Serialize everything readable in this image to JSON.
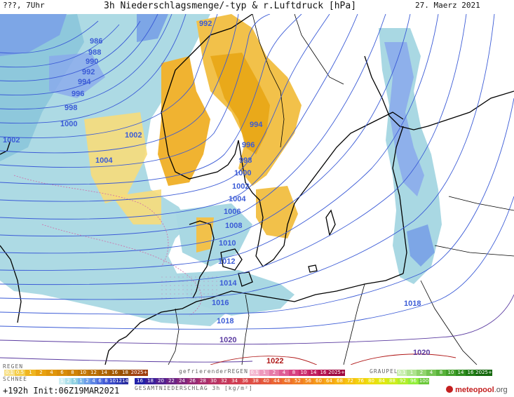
{
  "header": {
    "left": "???, 7Uhr",
    "title": "3h Niederschlagsmenge/-typ & r.Luftdruck [hPa]",
    "date": "27. Maerz 2021"
  },
  "isobars": [
    {
      "label": "986",
      "color": "#3b5bd6"
    },
    {
      "label": "988",
      "color": "#3b5bd6"
    },
    {
      "label": "990",
      "color": "#3b5bd6"
    },
    {
      "label": "992",
      "color": "#3b5bd6"
    },
    {
      "label": "994",
      "color": "#3b5bd6"
    },
    {
      "label": "996",
      "color": "#3b5bd6"
    },
    {
      "label": "998",
      "color": "#3b5bd6"
    },
    {
      "label": "1000",
      "color": "#3b5bd6"
    },
    {
      "label": "1002",
      "color": "#3b5bd6"
    },
    {
      "label": "1002",
      "color": "#3b5bd6"
    },
    {
      "label": "1004",
      "color": "#3b5bd6"
    },
    {
      "label": "994",
      "color": "#3b5bd6"
    },
    {
      "label": "996",
      "color": "#3b5bd6"
    },
    {
      "label": "998",
      "color": "#3b5bd6"
    },
    {
      "label": "1000",
      "color": "#3b5bd6"
    },
    {
      "label": "1002",
      "color": "#3b5bd6"
    },
    {
      "label": "1004",
      "color": "#3b5bd6"
    },
    {
      "label": "1006",
      "color": "#3b5bd6"
    },
    {
      "label": "1008",
      "color": "#3b5bd6"
    },
    {
      "label": "1010",
      "color": "#3b5bd6"
    },
    {
      "label": "1012",
      "color": "#3b5bd6"
    },
    {
      "label": "1014",
      "color": "#3b5bd6"
    },
    {
      "label": "1016",
      "color": "#3b5bd6"
    },
    {
      "label": "1018",
      "color": "#3b5bd6"
    },
    {
      "label": "1018",
      "color": "#3b5bd6"
    },
    {
      "label": "1020",
      "color": "#5a3aa0"
    },
    {
      "label": "1020",
      "color": "#5a3aa0"
    },
    {
      "label": "1022",
      "color": "#b01818"
    },
    {
      "label": "992",
      "color": "#3b5bd6"
    }
  ],
  "legend": {
    "regen_label": "REGEN",
    "schnee_label": "SCHNEE",
    "gefrierender_label": "gefrierenderREGEN",
    "graupel_label": "GRAUPEL",
    "gesamt_label": "GESAMTNIEDERSCHLAG 3h [kg/m²]",
    "rain_scale": [
      "0.1",
      "0.5",
      "1",
      "2",
      "4",
      "6",
      "8",
      "10",
      "12",
      "14",
      "16",
      "18",
      "2025+"
    ],
    "rain_colors": [
      "#f7e08a",
      "#f4cd4a",
      "#efb520",
      "#e8a10f",
      "#e0960a",
      "#d88c08",
      "#cf8206",
      "#c47804",
      "#b96e03",
      "#ae6402",
      "#a35a02",
      "#985002",
      "#a04010"
    ],
    "freezing_scale": [
      "0.1",
      "1",
      "2",
      "4",
      "8",
      "10",
      "14",
      "16",
      "2025+"
    ],
    "freezing_colors": [
      "#f4b8d0",
      "#ee99bd",
      "#e67aa8",
      "#df5c95",
      "#d74080",
      "#cd2d6e",
      "#c21d5f",
      "#b5104f",
      "#a00840"
    ],
    "graupel_scale": [
      "0.1",
      "1",
      "2",
      "4",
      "8",
      "10",
      "14",
      "16",
      "2025+"
    ],
    "graupel_colors": [
      "#c8eeb0",
      "#aee38f",
      "#92d46f",
      "#74c452",
      "#58b23a",
      "#42a02a",
      "#2f8e1e",
      "#207c14",
      "#14680c"
    ],
    "snow_scale": [
      "1",
      "2",
      "5",
      "1",
      "2",
      "4",
      "6",
      "8",
      "10",
      "12",
      "14"
    ],
    "snow_colors": [
      "#cfeef2",
      "#aee0ea",
      "#8ed0e1",
      "#7db7e8",
      "#6d9ee8",
      "#5d85e4",
      "#4f6ddd",
      "#4258d4",
      "#3848c6",
      "#2e3ab6",
      "#2a2ea0"
    ],
    "total_scale": [
      "16",
      "18",
      "20",
      "22",
      "24",
      "26",
      "28",
      "30",
      "32",
      "34",
      "36",
      "38",
      "40",
      "44",
      "48",
      "52",
      "56",
      "60",
      "64",
      "68",
      "72",
      "76",
      "80",
      "84",
      "88",
      "92",
      "96",
      "100"
    ],
    "total_colors": [
      "#2222a8",
      "#3a1f9a",
      "#52208e",
      "#6a2384",
      "#80267c",
      "#962a74",
      "#a82e6c",
      "#b73364",
      "#c4385c",
      "#cf3e54",
      "#d8464c",
      "#df5044",
      "#e55a3c",
      "#ea6634",
      "#ee722c",
      "#f17e26",
      "#f38b20",
      "#f5991a",
      "#f6a716",
      "#f6b512",
      "#f5c310",
      "#f2d10e",
      "#ecdd0e",
      "#e0e612",
      "#ccec1c",
      "#b0ee2a",
      "#92ee3a",
      "#6cc83a"
    ]
  },
  "footer": {
    "run_info": "+192h Init:06Z19MAR2021",
    "brand": "meteopool",
    "brand_suffix": ".org"
  }
}
